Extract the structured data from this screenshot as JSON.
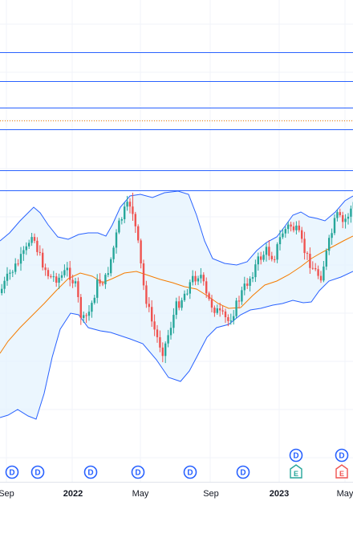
{
  "chart_data": {
    "type": "candlestick",
    "x_tick_labels": [
      "Sep",
      "2022",
      "May",
      "Sep",
      "2023",
      "May"
    ],
    "grid": true,
    "colors": {
      "up": "#26a69a",
      "down": "#ef5350",
      "bollinger_band": "#2962ff",
      "band_fill": "#e3f2fd",
      "moving_average": "#f57c00",
      "horizontal_level": "#2962ff",
      "dotted_level": "#f57c00",
      "marker": "#2962ff",
      "earnings_up": "#26a69a",
      "earnings_down": "#ef5350",
      "grid": "#f0f3fa"
    },
    "event_markers": [
      {
        "label": "D",
        "kind": "dividend"
      },
      {
        "label": "D",
        "kind": "dividend"
      },
      {
        "label": "D",
        "kind": "dividend"
      },
      {
        "label": "D",
        "kind": "dividend"
      },
      {
        "label": "D",
        "kind": "dividend"
      },
      {
        "label": "D",
        "kind": "dividend"
      },
      {
        "label": "D",
        "kind": "dividend"
      },
      {
        "label": "E",
        "kind": "earnings",
        "color": "#26a69a"
      },
      {
        "label": "D",
        "kind": "dividend"
      },
      {
        "label": "E",
        "kind": "earnings",
        "color": "#ef5350"
      }
    ]
  }
}
